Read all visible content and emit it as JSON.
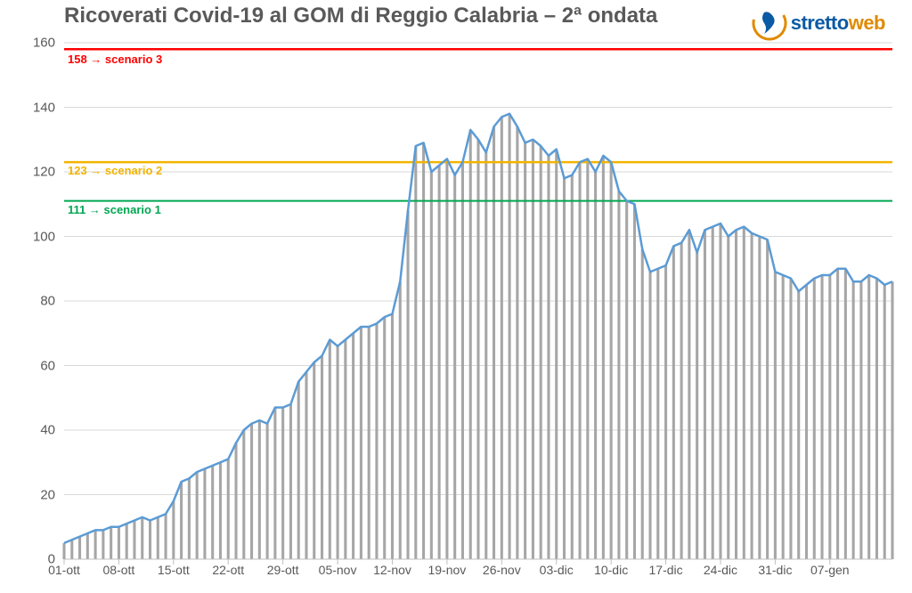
{
  "title": "Ricoverati Covid-19 al GOM di Reggio Calabria – 2ª ondata",
  "logo": {
    "text_part1": "stretto",
    "text_part2": "web",
    "color1": "#0b5aa4",
    "color2": "#e08a00"
  },
  "chart": {
    "type": "line-area-with-bars",
    "background_color": "#ffffff",
    "grid_color": "#d9d9d9",
    "axis_color": "#bfbfbf",
    "text_color": "#595959",
    "line_color": "#5b9bd5",
    "line_width": 2.5,
    "bar_color": "#a6a6a6",
    "bar_width_ratio": 0.35,
    "ylim": [
      0,
      160
    ],
    "ytick_step": 20,
    "y_ticks": [
      0,
      20,
      40,
      60,
      80,
      100,
      120,
      140,
      160
    ],
    "x_tick_labels": [
      "01-ott",
      "08-ott",
      "15-ott",
      "22-ott",
      "29-ott",
      "05-nov",
      "12-nov",
      "19-nov",
      "26-nov",
      "03-dic",
      "10-dic",
      "17-dic",
      "24-dic",
      "31-dic",
      "07-gen"
    ],
    "x_tick_step": 7,
    "scenarios": [
      {
        "label": "158 → scenario 3",
        "value": 158,
        "color": "#ff0000",
        "width": 2.5,
        "label_offset_y": 10
      },
      {
        "label": "123 → scenario 2",
        "value": 123,
        "color": "#f2b400",
        "width": 2.5,
        "label_offset_y": 8
      },
      {
        "label": "111 → scenario 1",
        "value": 111,
        "color": "#00a651",
        "width": 2,
        "label_offset_y": 8
      }
    ],
    "values": [
      5,
      6,
      7,
      8,
      9,
      9,
      10,
      10,
      11,
      12,
      13,
      12,
      13,
      14,
      18,
      24,
      25,
      27,
      28,
      29,
      30,
      31,
      36,
      40,
      42,
      43,
      42,
      47,
      47,
      48,
      55,
      58,
      61,
      63,
      68,
      66,
      68,
      70,
      72,
      72,
      73,
      75,
      76,
      86,
      108,
      128,
      129,
      120,
      122,
      124,
      119,
      123,
      133,
      130,
      126,
      134,
      137,
      138,
      134,
      129,
      130,
      128,
      125,
      127,
      118,
      119,
      123,
      124,
      120,
      125,
      123,
      114,
      111,
      110,
      96,
      89,
      90,
      91,
      97,
      98,
      102,
      95,
      102,
      103,
      104,
      100,
      102,
      103,
      101,
      100,
      99,
      89,
      88,
      87,
      83,
      85,
      87,
      88,
      88,
      90,
      90,
      86,
      86,
      88,
      87,
      85,
      86
    ]
  }
}
